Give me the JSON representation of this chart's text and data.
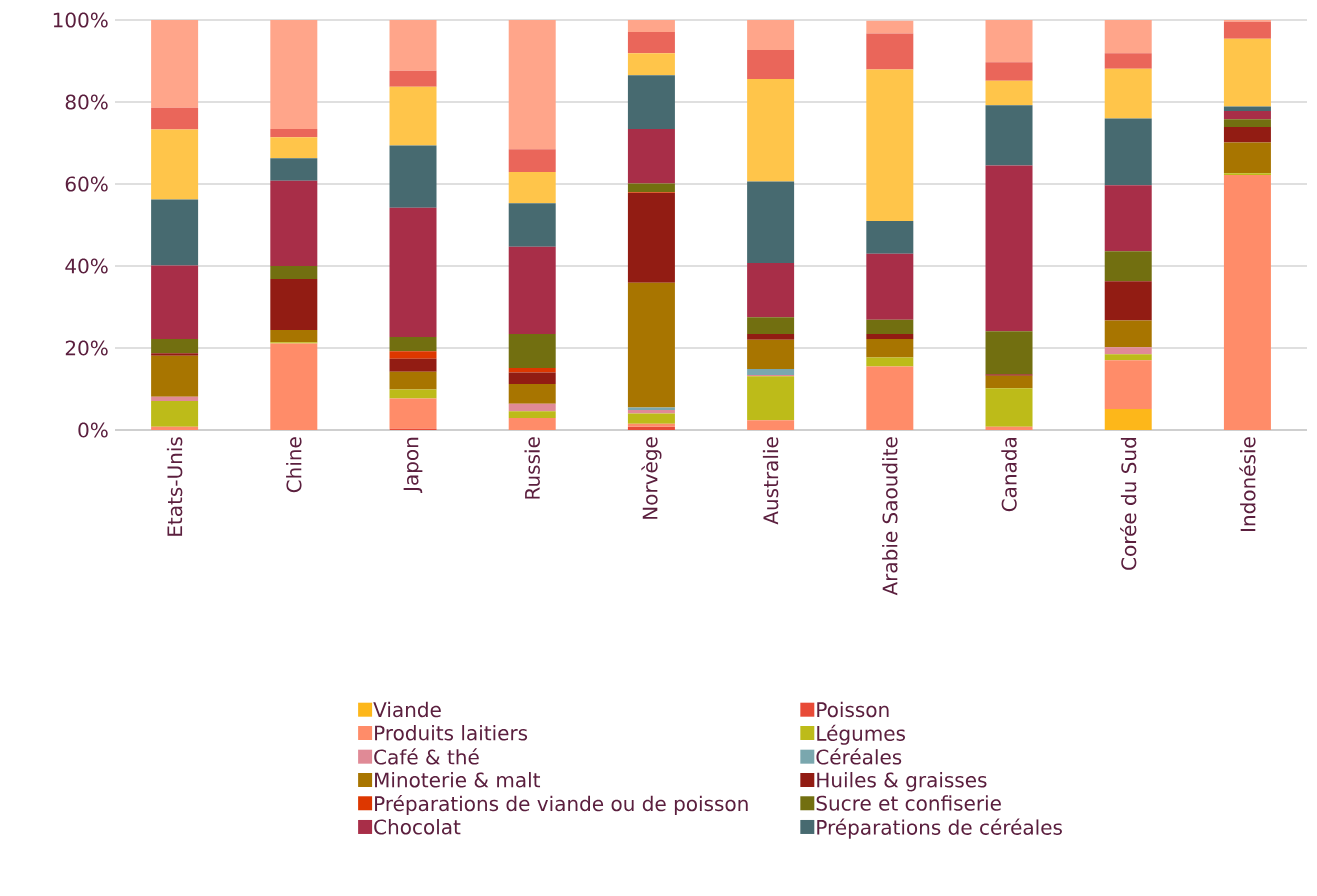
{
  "chart_data": {
    "type": "bar",
    "stacked": true,
    "categories": [
      "Etats-Unis",
      "Chine",
      "Japon",
      "Russie",
      "Norvège",
      "Australie",
      "Arabie Saoudite",
      "Canada",
      "Corée du Sud",
      "Indonésie"
    ],
    "ylim": [
      0,
      100
    ],
    "yticks": [
      {
        "value": 0,
        "label": "0%"
      },
      {
        "value": 20,
        "label": "20%"
      },
      {
        "value": 40,
        "label": "40%"
      },
      {
        "value": 60,
        "label": "60%"
      },
      {
        "value": 80,
        "label": "80%"
      },
      {
        "value": 100,
        "label": "100%"
      }
    ],
    "grid": "y",
    "legend": "bottom",
    "series": [
      {
        "name": "Viande",
        "color": "#fdb71a",
        "values": [
          0,
          0,
          0,
          0,
          0,
          0,
          0,
          0,
          5.1,
          0
        ]
      },
      {
        "name": "Poisson",
        "color": "#e84a37",
        "values": [
          0,
          0,
          0.3,
          0,
          0.8,
          0,
          0,
          0,
          0,
          0
        ]
      },
      {
        "name": "Produits laitiers",
        "color": "#ff8c69",
        "values": [
          0.8,
          21.1,
          7.4,
          2.9,
          0.7,
          2.4,
          15.5,
          0.8,
          11.9,
          62.2
        ]
      },
      {
        "name": "Légumes",
        "color": "#bdbb19",
        "values": [
          6.3,
          0.3,
          2.2,
          1.7,
          2.5,
          10.7,
          2.2,
          9.4,
          1.5,
          0.4
        ]
      },
      {
        "name": "Café & thé",
        "color": "#e08a96",
        "values": [
          1.0,
          0,
          0,
          1.8,
          0.9,
          0.3,
          null,
          0,
          1.7,
          0
        ]
      },
      {
        "name": "Céréales",
        "color": "#7aa7ae",
        "values": [
          0,
          0,
          0,
          0,
          0.6,
          1.5,
          0,
          0,
          0,
          0
        ]
      },
      {
        "name": "Minoterie & malt",
        "color": "#a87500",
        "values": [
          10.0,
          3.0,
          4.3,
          4.8,
          30.4,
          7.1,
          4.5,
          3.0,
          6.5,
          7.5
        ]
      },
      {
        "name": "Huiles & graisses",
        "color": "#921c13",
        "values": [
          0.6,
          12.4,
          3.2,
          2.8,
          21.9,
          1.4,
          1.2,
          0.4,
          9.6,
          3.8
        ]
      },
      {
        "name": "Préparations de viande ou de poisson",
        "color": "#dd3700",
        "values": [
          0,
          0,
          1.8,
          1.1,
          0.2,
          0,
          0,
          0,
          0,
          0
        ]
      },
      {
        "name": "Sucre et confiserie",
        "color": "#726f10",
        "values": [
          3.5,
          3.2,
          3.5,
          8.3,
          2.1,
          4.1,
          3.5,
          10.5,
          7.3,
          1.9
        ]
      },
      {
        "name": "Chocolat",
        "color": "#a82e48",
        "values": [
          17.9,
          20.8,
          31.5,
          21.3,
          13.3,
          13.2,
          16.1,
          40.4,
          16.1,
          2.0
        ]
      },
      {
        "name": "Préparations de céréales",
        "color": "#476a70",
        "values": [
          16.1,
          5.5,
          15.2,
          10.6,
          13.1,
          19.9,
          8.0,
          14.7,
          16.3,
          1.1
        ]
      },
      {
        "color": "#ffc54a",
        "values": [
          17.1,
          5.1,
          14.3,
          7.6,
          5.4,
          25.0,
          36.9,
          6.0,
          12.1,
          16.5
        ]
      },
      {
        "color": "#ea665a",
        "values": [
          5.3,
          2.0,
          3.9,
          5.6,
          5.2,
          7.1,
          8.8,
          4.5,
          3.8,
          4.2
        ]
      },
      {
        "color": "#ffa58a",
        "values": [
          21.4,
          26.6,
          12.4,
          31.5,
          2.9,
          7.3,
          3.1,
          10.3,
          8.1,
          0.4
        ]
      }
    ]
  }
}
